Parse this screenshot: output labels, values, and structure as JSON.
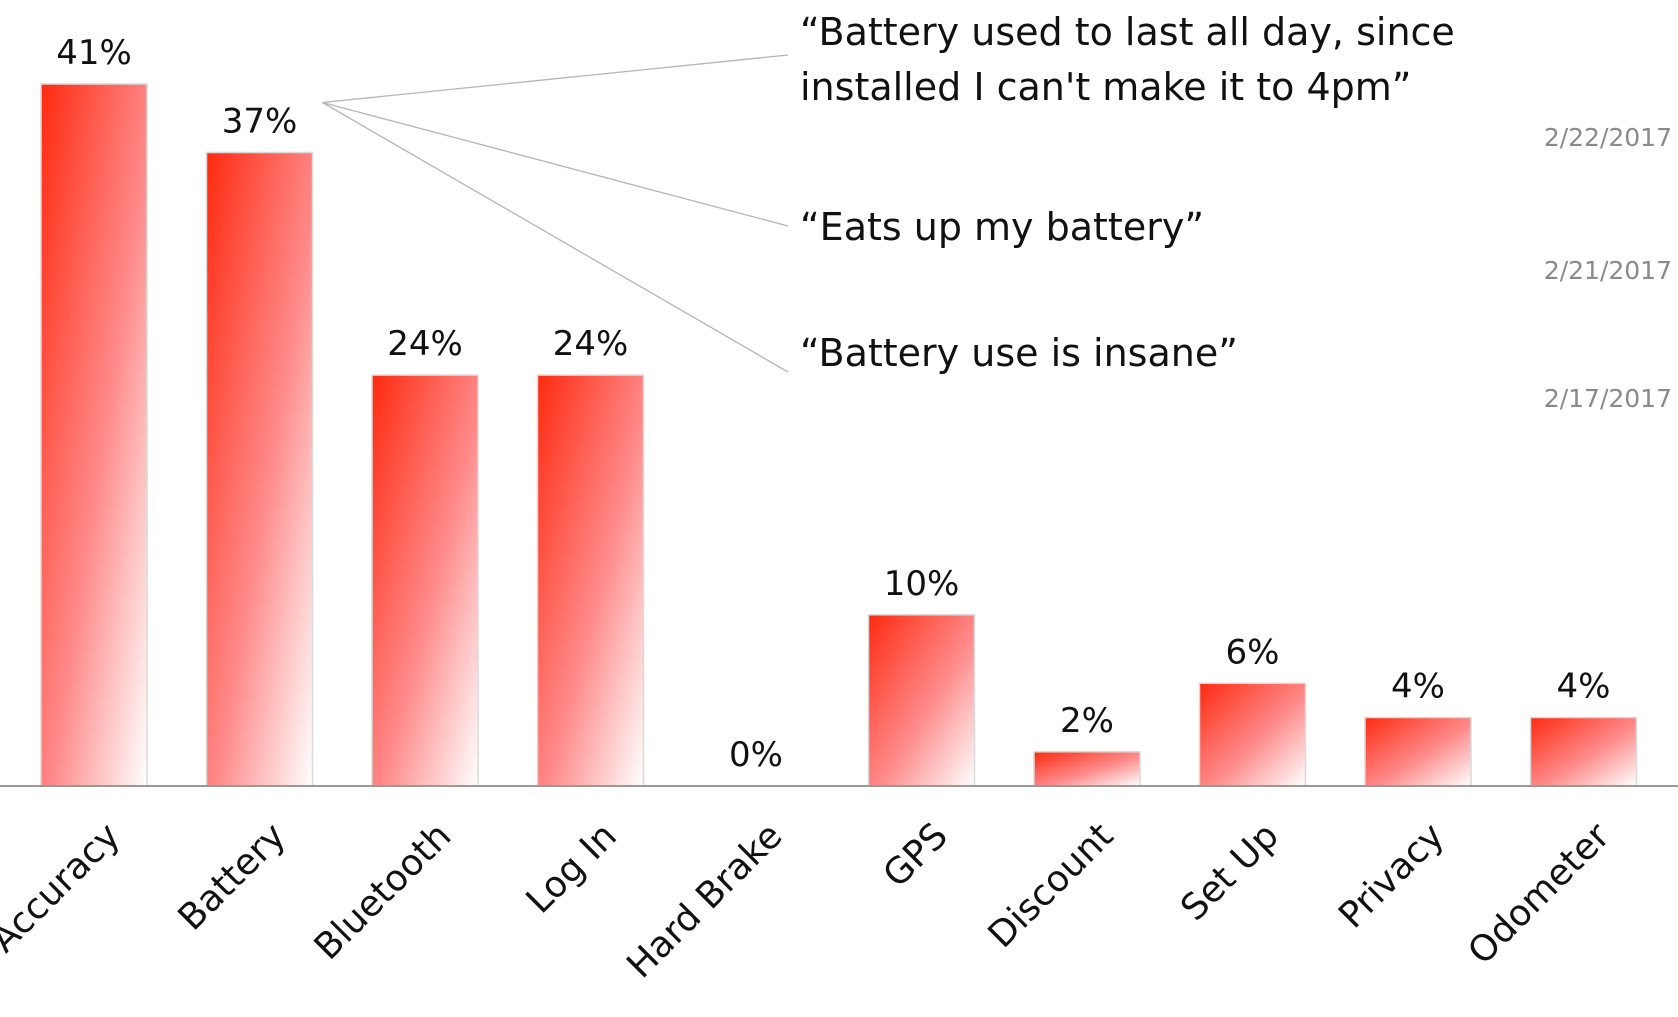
{
  "chart_data": {
    "type": "bar",
    "categories": [
      "Accuracy",
      "Battery",
      "Bluetooth",
      "Log In",
      "Hard Brake",
      "GPS",
      "Discount",
      "Set Up",
      "Privacy",
      "Odometer"
    ],
    "values": [
      41,
      37,
      24,
      24,
      0,
      10,
      2,
      6,
      4,
      4
    ],
    "value_labels": [
      "41%",
      "37%",
      "24%",
      "24%",
      "0%",
      "10%",
      "2%",
      "6%",
      "4%",
      "4%"
    ],
    "ylim": [
      0,
      41
    ],
    "grid": false,
    "bar_color": "#ff2a10",
    "annotations": [
      {
        "target": "Battery",
        "quote_lines": [
          "“Battery used to last all day, since",
          "installed I can't make it to 4pm”"
        ],
        "date": "2/22/2017"
      },
      {
        "target": "Battery",
        "quote_lines": [
          "“Eats up my battery”"
        ],
        "date": "2/21/2017"
      },
      {
        "target": "Battery",
        "quote_lines": [
          "“Battery use is insane”"
        ],
        "date": "2/17/2017"
      }
    ]
  }
}
